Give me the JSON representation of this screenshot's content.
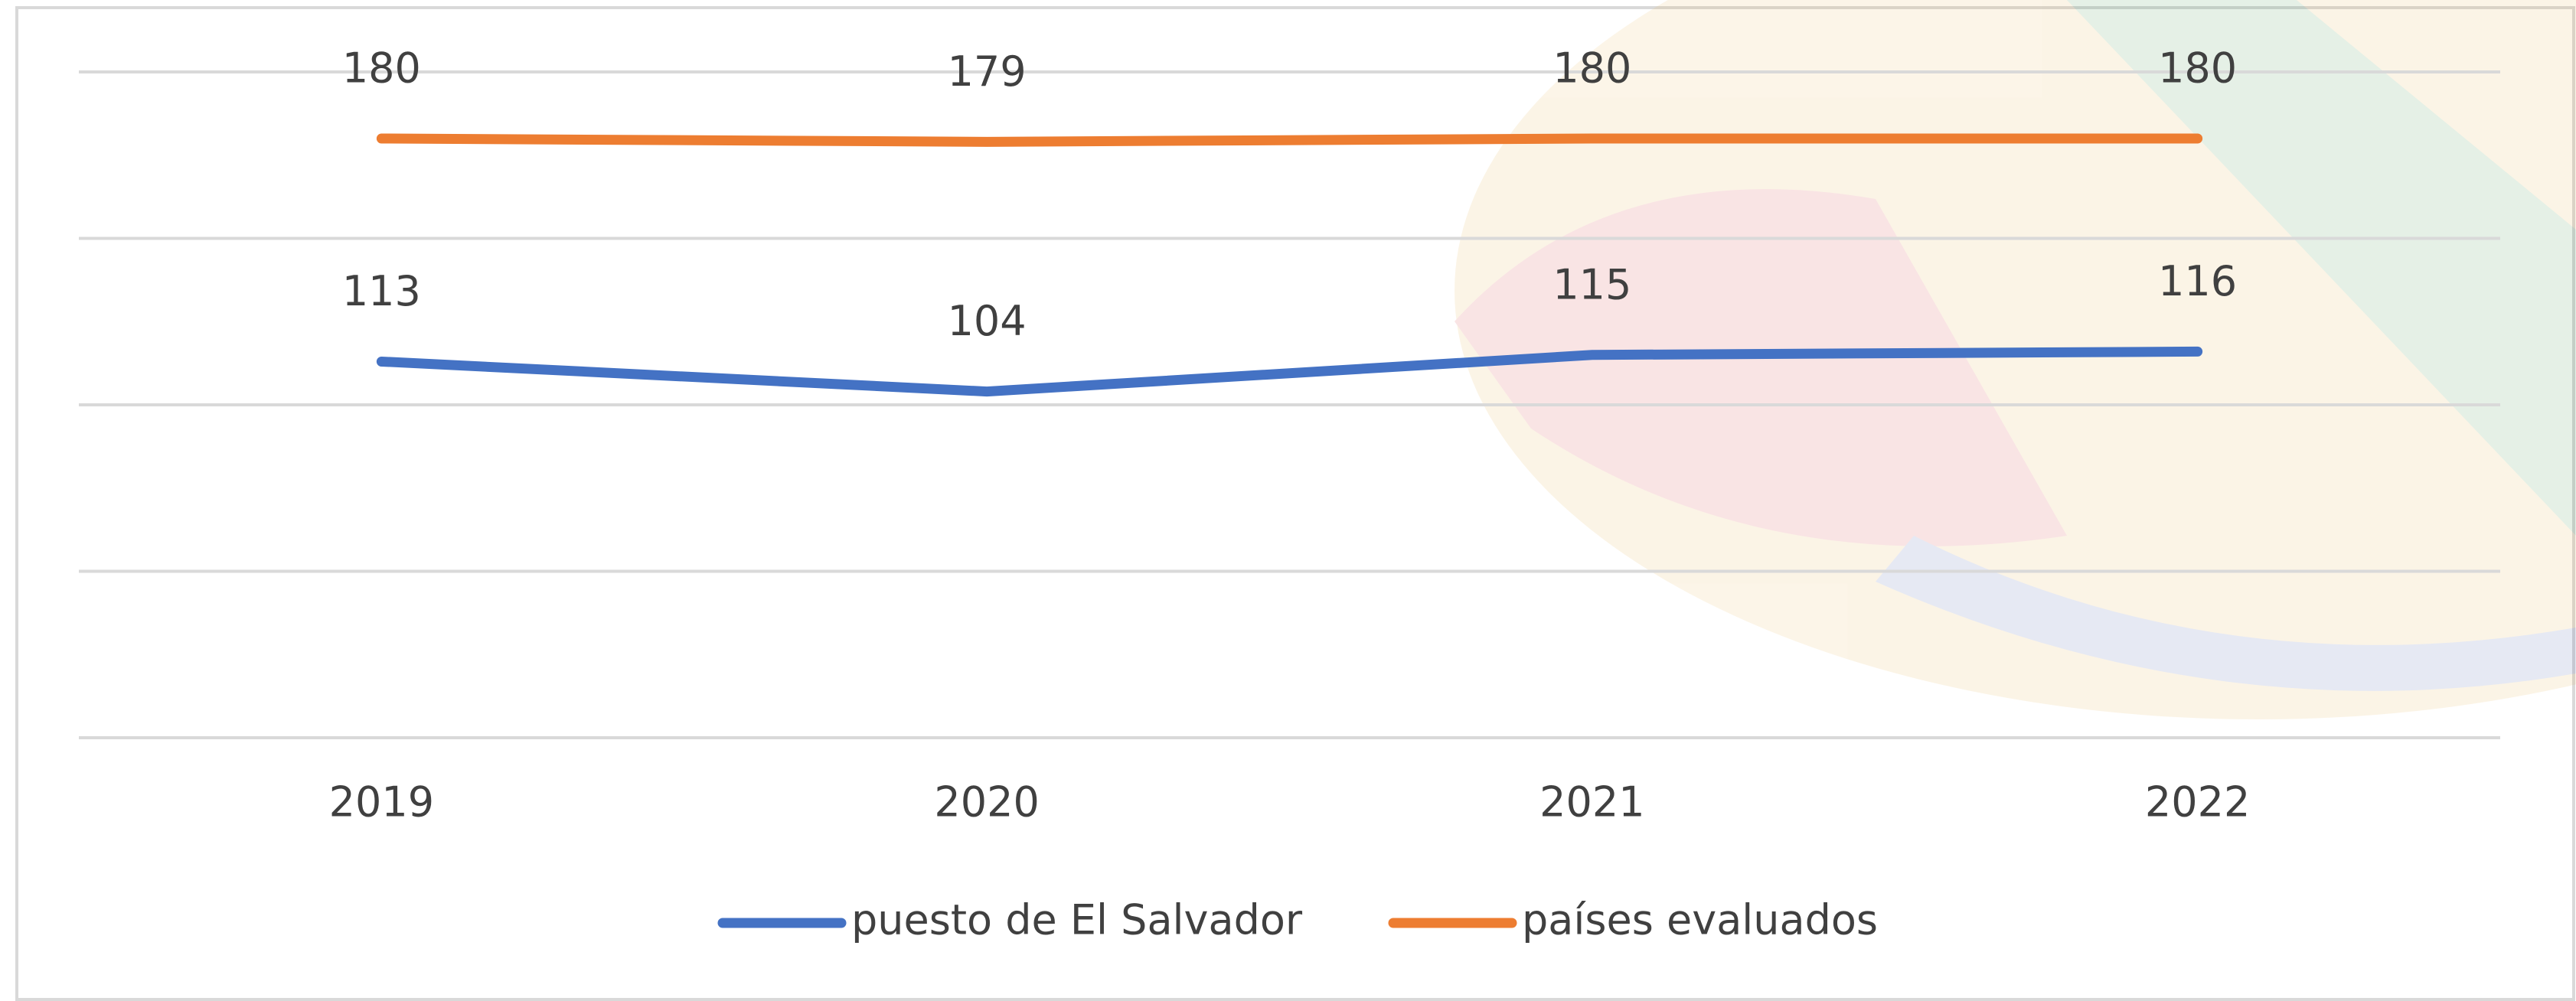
{
  "chart_data": {
    "type": "line",
    "categories": [
      "2019",
      "2020",
      "2021",
      "2022"
    ],
    "series": [
      {
        "name": "puesto de El Salvador",
        "color": "#4472c4",
        "values": [
          113,
          104,
          115,
          116
        ]
      },
      {
        "name": "países evaluados",
        "color": "#ed7d31",
        "values": [
          180,
          179,
          180,
          180
        ]
      }
    ],
    "ylim": [
      0,
      200
    ],
    "yticks": [
      0,
      50,
      100,
      150,
      200
    ],
    "grid": true,
    "legend": "bottom"
  }
}
